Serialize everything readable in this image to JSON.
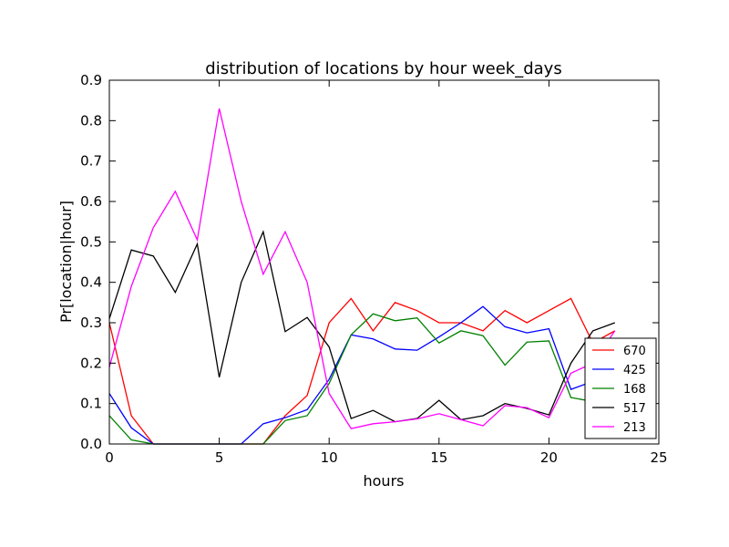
{
  "chart_data": {
    "type": "line",
    "title": "distribution of locations by hour week_days",
    "xlabel": "hours",
    "ylabel": "Pr[location|hour]",
    "xlim": [
      0,
      25
    ],
    "ylim": [
      0,
      0.9
    ],
    "xticks": [
      0,
      5,
      10,
      15,
      20,
      25
    ],
    "yticks": [
      0.0,
      0.1,
      0.2,
      0.3,
      0.4,
      0.5,
      0.6,
      0.7,
      0.8,
      0.9
    ],
    "xtick_labels": [
      "0",
      "5",
      "10",
      "15",
      "20",
      "25"
    ],
    "ytick_labels": [
      "0.0",
      "0.1",
      "0.2",
      "0.3",
      "0.4",
      "0.5",
      "0.6",
      "0.7",
      "0.8",
      "0.9"
    ],
    "grid": false,
    "legend_position": "lower-right",
    "x": [
      0,
      1,
      2,
      3,
      4,
      5,
      6,
      7,
      8,
      9,
      10,
      11,
      12,
      13,
      14,
      15,
      16,
      17,
      18,
      19,
      20,
      21,
      22,
      23
    ],
    "series": [
      {
        "name": "670",
        "color": "#ff0000",
        "values": [
          0.3,
          0.07,
          0.0,
          0.0,
          0.0,
          0.0,
          0.0,
          0.0,
          0.07,
          0.12,
          0.3,
          0.36,
          0.28,
          0.35,
          0.33,
          0.3,
          0.3,
          0.28,
          0.33,
          0.3,
          0.33,
          0.36,
          0.25,
          0.28
        ]
      },
      {
        "name": "425",
        "color": "#0000ff",
        "values": [
          0.125,
          0.04,
          0.0,
          0.0,
          0.0,
          0.0,
          0.0,
          0.05,
          0.065,
          0.085,
          0.16,
          0.27,
          0.26,
          0.235,
          0.232,
          0.265,
          0.3,
          0.34,
          0.29,
          0.275,
          0.285,
          0.135,
          0.155,
          0.25
        ]
      },
      {
        "name": "168",
        "color": "#008000",
        "values": [
          0.07,
          0.01,
          0.0,
          0.0,
          0.0,
          0.0,
          0.0,
          0.0,
          0.058,
          0.07,
          0.15,
          0.27,
          0.322,
          0.305,
          0.312,
          0.25,
          0.28,
          0.268,
          0.195,
          0.252,
          0.255,
          0.115,
          0.105,
          0.25
        ]
      },
      {
        "name": "517",
        "color": "#000000",
        "values": [
          0.31,
          0.48,
          0.465,
          0.375,
          0.495,
          0.165,
          0.4,
          0.525,
          0.278,
          0.313,
          0.24,
          0.063,
          0.083,
          0.055,
          0.063,
          0.108,
          0.06,
          0.07,
          0.1,
          0.088,
          0.072,
          0.2,
          0.28,
          0.3
        ]
      },
      {
        "name": "213",
        "color": "#ff00ff",
        "values": [
          0.19,
          0.39,
          0.535,
          0.625,
          0.505,
          0.83,
          0.6,
          0.42,
          0.525,
          0.4,
          0.125,
          0.038,
          0.05,
          0.055,
          0.062,
          0.075,
          0.06,
          0.045,
          0.095,
          0.09,
          0.065,
          0.175,
          0.2,
          0.28
        ]
      }
    ]
  }
}
